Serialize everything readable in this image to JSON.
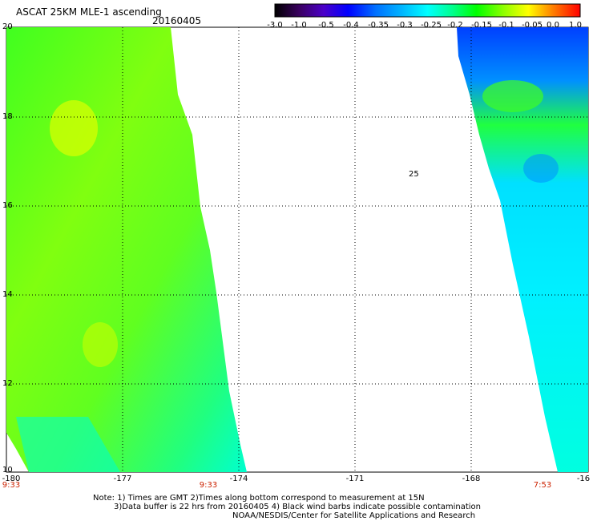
{
  "header": {
    "title": "ASCAT 25KM MLE-1 ascending",
    "date": "20160405"
  },
  "colorbar": {
    "labels": [
      "-3.0",
      "-1.0",
      "-0.5",
      "-0.4",
      "-0.35",
      "-0.3",
      "-0.25",
      "-0.2",
      "-0.15",
      "-0.1",
      "-0.05",
      "0.0",
      "1.0"
    ],
    "colors": [
      "#000000",
      "#4b0082",
      "#0000ff",
      "#0080ff",
      "#00c0ff",
      "#00ffff",
      "#00ffc0",
      "#00ff80",
      "#00ff00",
      "#80ff00",
      "#ffff00",
      "#ff8000",
      "#ff0000"
    ]
  },
  "axes": {
    "y_labels": [
      "20",
      "18",
      "16",
      "14",
      "12",
      "10"
    ],
    "x_labels": [
      "-180",
      "-177",
      "-174",
      "-171",
      "-168",
      "-16"
    ],
    "time_labels": [
      "9:33",
      "9:33",
      "7:53"
    ]
  },
  "annotation": "25",
  "notes": {
    "line1": "Note: 1) Times are GMT 2)Times along bottom correspond to measurement at 15N",
    "line2": "3)Data buffer is 22 hrs from 20160405 4) Black wind barbs indicate possible contamination",
    "line3": "NOAA/NESDIS/Center for Satellite Applications and Research"
  }
}
